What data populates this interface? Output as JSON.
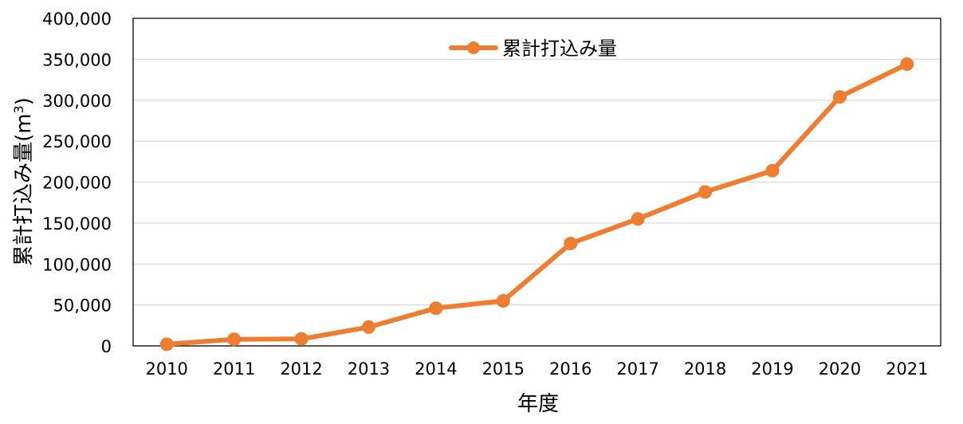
{
  "chart_data": {
    "type": "line",
    "categories": [
      "2010",
      "2011",
      "2012",
      "2013",
      "2014",
      "2015",
      "2016",
      "2017",
      "2018",
      "2019",
      "2020",
      "2021"
    ],
    "series": [
      {
        "name": "累計打込み量",
        "values": [
          2000,
          8000,
          8500,
          23000,
          46000,
          55000,
          125000,
          155000,
          188000,
          214000,
          304000,
          344000
        ],
        "color": "#ED7D31"
      }
    ],
    "xlabel": "年度",
    "ylabel": "累計打込み量(m",
    "ylabel_superscript": "3",
    "ylabel_close": ")",
    "ylim": [
      0,
      400000
    ],
    "yticks": [
      0,
      50000,
      100000,
      150000,
      200000,
      250000,
      300000,
      350000,
      400000
    ],
    "ytick_labels": [
      "0",
      "50,000",
      "100,000",
      "150,000",
      "200,000",
      "250,000",
      "300,000",
      "350,000",
      "400,000"
    ],
    "grid": true,
    "legend_position": "top-center",
    "colors": {
      "gridline": "#D9D9D9",
      "axis": "#000000"
    }
  }
}
